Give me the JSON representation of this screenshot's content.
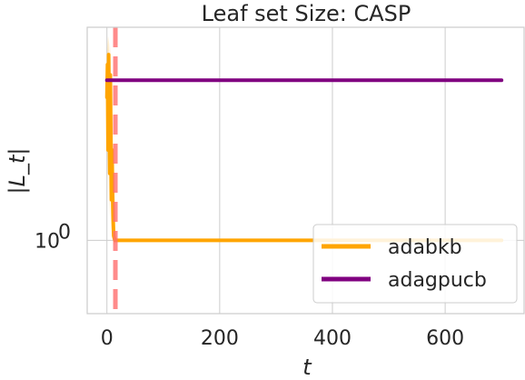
{
  "chart_data": {
    "type": "line",
    "title": "Leaf set Size: CASP",
    "xlabel": "t",
    "ylabel": "|L_t|",
    "xlim": [
      -35,
      740
    ],
    "x_ticks": [
      0,
      200,
      400,
      600
    ],
    "x_tick_labels": [
      "0",
      "200",
      "400",
      "600"
    ],
    "yscale": "log",
    "ylim": [
      0.72,
      2.6
    ],
    "y_ticks": [
      1
    ],
    "y_tick_labels": [
      "10",
      "0"
    ],
    "grid": true,
    "legend_position": "lower-right",
    "series": [
      {
        "name": "adabkb",
        "color": "#FFA500",
        "x": [
          0,
          1,
          2,
          3,
          4,
          5,
          6,
          7,
          8,
          9,
          10,
          11,
          12,
          13,
          14,
          15,
          16,
          700
        ],
        "y": [
          1.9,
          2.2,
          1.5,
          2.3,
          1.7,
          1.35,
          2.1,
          1.6,
          1.2,
          1.5,
          1.25,
          1.1,
          1.02,
          1.01,
          1.0,
          1.0,
          1.0,
          1.0
        ],
        "band_upper": [
          2.3,
          2.5,
          2.3,
          2.5,
          2.4,
          2.2,
          2.4,
          2.1,
          1.9,
          1.8,
          1.6,
          1.3,
          1.15,
          1.05,
          1.02,
          1.0,
          1.0,
          1.0
        ],
        "band_lower": [
          1.5,
          1.7,
          1.2,
          1.6,
          1.25,
          1.1,
          1.4,
          1.2,
          1.05,
          1.15,
          1.05,
          1.0,
          0.98,
          0.98,
          0.99,
          1.0,
          1.0,
          1.0
        ]
      },
      {
        "name": "adagpucb",
        "color": "#800080",
        "x": [
          0,
          700
        ],
        "y": [
          2.05,
          2.05
        ]
      }
    ],
    "vlines": [
      {
        "x": 15,
        "color": "#FF6F6F",
        "style": "dashed"
      }
    ]
  }
}
